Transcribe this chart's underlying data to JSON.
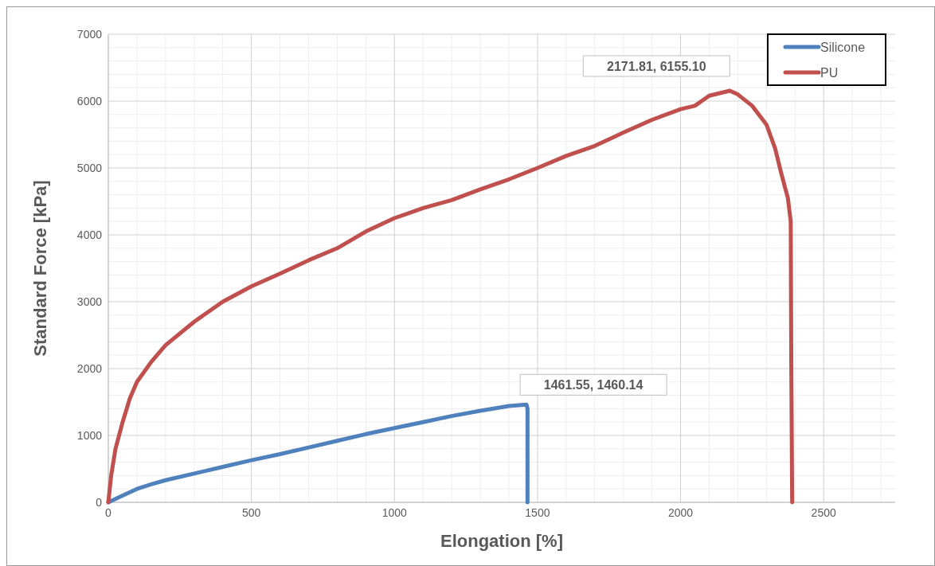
{
  "chart_data": {
    "type": "line",
    "xlabel": "Elongation [%]",
    "ylabel": "Standard Force [kPa]",
    "xlim": [
      0,
      2750
    ],
    "xticks": [
      0,
      500,
      1000,
      1500,
      2000,
      2500
    ],
    "ylim": [
      0,
      7000
    ],
    "yticks": [
      0,
      1000,
      2000,
      3000,
      4000,
      5000,
      6000,
      7000
    ],
    "grid": true,
    "legend": "top right",
    "marker": "none",
    "line_style": "solid",
    "series": [
      {
        "name": "Silicone",
        "color": "#4f81bd",
        "x": [
          0,
          50,
          100,
          150,
          200,
          300,
          400,
          500,
          600,
          700,
          800,
          900,
          1000,
          1100,
          1200,
          1300,
          1400,
          1461.55,
          1465,
          1465
        ],
        "values": [
          0,
          100,
          200,
          270,
          330,
          430,
          530,
          630,
          720,
          820,
          920,
          1020,
          1110,
          1200,
          1290,
          1370,
          1440,
          1460.14,
          1400,
          0
        ]
      },
      {
        "name": "PU",
        "color": "#c0504d",
        "x": [
          0,
          10,
          25,
          50,
          75,
          100,
          150,
          200,
          300,
          400,
          500,
          600,
          700,
          800,
          900,
          1000,
          1100,
          1200,
          1300,
          1400,
          1500,
          1600,
          1700,
          1800,
          1900,
          2000,
          2050,
          2100,
          2171.81,
          2200,
          2250,
          2300,
          2330,
          2350,
          2375,
          2385,
          2387,
          2390
        ],
        "values": [
          0,
          400,
          800,
          1200,
          1550,
          1800,
          2100,
          2350,
          2700,
          3000,
          3230,
          3420,
          3620,
          3800,
          4050,
          4250,
          4400,
          4520,
          4680,
          4830,
          5000,
          5180,
          5330,
          5530,
          5720,
          5880,
          5930,
          6080,
          6155.1,
          6100,
          5930,
          5650,
          5300,
          4950,
          4550,
          4200,
          2000,
          0
        ]
      }
    ],
    "annotations": [
      {
        "text": "1461.55, 1460.14",
        "x": 1461.55,
        "y": 1460.14
      },
      {
        "text": "2171.81, 6155.10",
        "x": 2171.81,
        "y": 6155.1
      }
    ]
  }
}
